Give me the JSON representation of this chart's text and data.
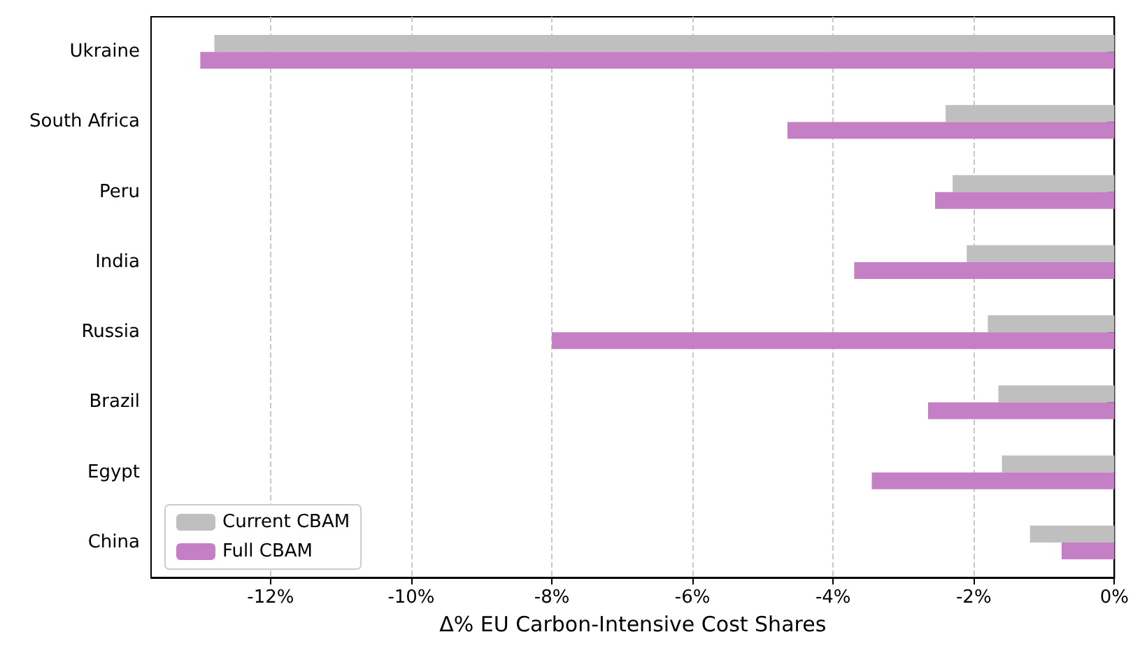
{
  "chart_data": {
    "type": "bar",
    "orientation": "horizontal",
    "xlabel": "Δ% EU Carbon-Intensive Cost Shares",
    "categories": [
      "Ukraine",
      "South Africa",
      "Peru",
      "India",
      "Russia",
      "Brazil",
      "Egypt",
      "China"
    ],
    "series": [
      {
        "name": "Current CBAM",
        "color": "#bfbfbf",
        "values": [
          -12.8,
          -2.4,
          -2.3,
          -2.1,
          -1.8,
          -1.65,
          -1.6,
          -1.2
        ]
      },
      {
        "name": "Full CBAM",
        "color": "#c57fc5",
        "values": [
          -13.0,
          -4.65,
          -2.55,
          -3.7,
          -8.0,
          -2.65,
          -3.45,
          -0.75
        ]
      }
    ],
    "xlim": [
      -13.7,
      0
    ],
    "xticks": [
      {
        "value": -12,
        "label": "-12%"
      },
      {
        "value": -10,
        "label": "-10%"
      },
      {
        "value": -8,
        "label": "-8%"
      },
      {
        "value": -6,
        "label": "-6%"
      },
      {
        "value": -4,
        "label": "-4%"
      },
      {
        "value": -2,
        "label": "-2%"
      },
      {
        "value": 0,
        "label": "0%"
      }
    ],
    "grid": "x",
    "legend": "bottom left"
  }
}
